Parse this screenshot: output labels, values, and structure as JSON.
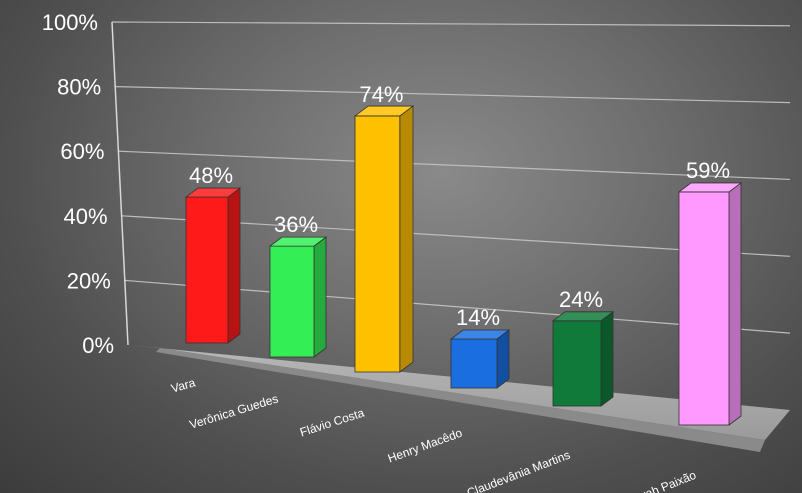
{
  "chart_data": {
    "type": "bar",
    "categories": [
      "Vara",
      "Verônica Guedes",
      "Flávio Costa",
      "Henry Macêdo",
      "Claudevânia Martins",
      "Sarah Paixão"
    ],
    "values": [
      48,
      36,
      74,
      14,
      24,
      59
    ],
    "data_labels": [
      "48%",
      "36%",
      "74%",
      "14%",
      "24%",
      "59%"
    ],
    "colors": [
      "#ff1a1a",
      "#33ee55",
      "#ffc000",
      "#1a6ee0",
      "#0f7a3a",
      "#ff99ff"
    ],
    "y_ticks": [
      "0%",
      "20%",
      "40%",
      "60%",
      "80%",
      "100%"
    ],
    "ylim": [
      0,
      100
    ],
    "grid": true,
    "style": "3d-perspective"
  }
}
